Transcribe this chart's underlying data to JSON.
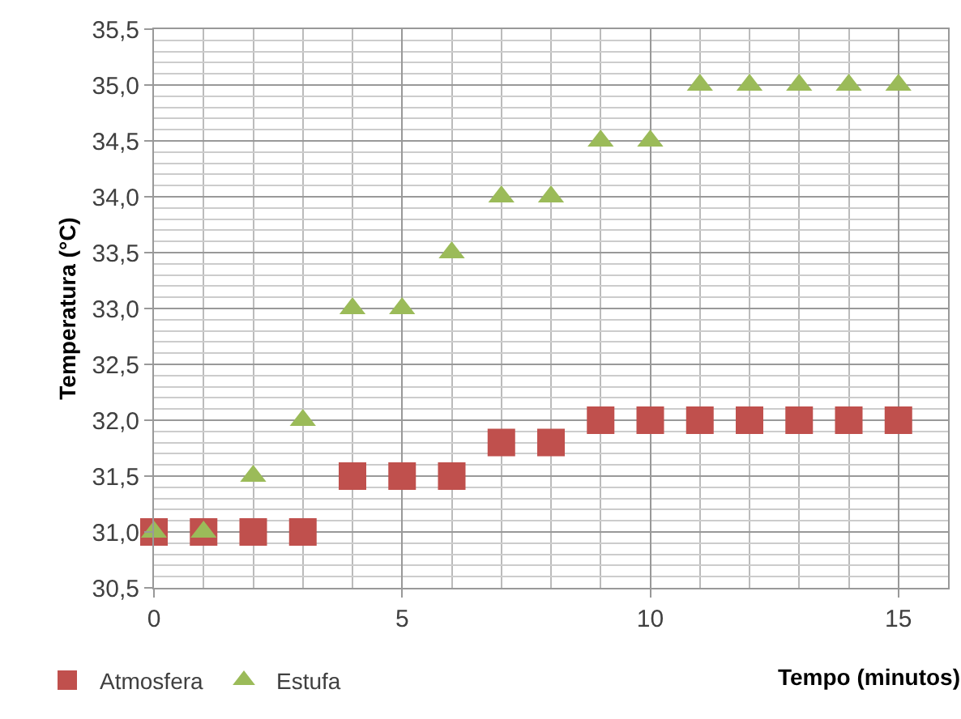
{
  "chart_data": {
    "type": "scatter",
    "xlabel": "Tempo (minutos)",
    "ylabel": "Temperatura (°C)",
    "x": [
      0,
      1,
      2,
      3,
      4,
      5,
      6,
      7,
      8,
      9,
      10,
      11,
      12,
      13,
      14,
      15
    ],
    "series": [
      {
        "name": "Atmosfera",
        "color": "#c0504d",
        "marker": "square",
        "values": [
          31,
          31,
          31,
          31,
          31.5,
          31.5,
          31.5,
          31.8,
          31.8,
          32,
          32,
          32,
          32,
          32,
          32,
          32
        ]
      },
      {
        "name": "Estufa",
        "color": "#9bbb59",
        "marker": "triangle",
        "values": [
          31,
          31,
          31.5,
          32,
          33,
          33,
          33.5,
          34,
          34,
          34.5,
          34.5,
          35,
          35,
          35,
          35,
          35
        ]
      }
    ],
    "xlim": [
      0,
      16
    ],
    "xticks": [
      0,
      5,
      10,
      15
    ],
    "ylim": [
      30.5,
      35.5
    ],
    "yticks": [
      {
        "value": 30.5,
        "label": "30,5"
      },
      {
        "value": 31,
        "label": "31,0"
      },
      {
        "value": 31.5,
        "label": "31,5"
      },
      {
        "value": 32,
        "label": "32,0"
      },
      {
        "value": 32.5,
        "label": "32,5"
      },
      {
        "value": 33,
        "label": "33,0"
      },
      {
        "value": 33.5,
        "label": "33,5"
      },
      {
        "value": 34,
        "label": "34,0"
      },
      {
        "value": 34.5,
        "label": "34,5"
      },
      {
        "value": 35,
        "label": "35,0"
      },
      {
        "value": 35.5,
        "label": "35,5"
      }
    ],
    "grid": true,
    "legend": "bottom left"
  }
}
